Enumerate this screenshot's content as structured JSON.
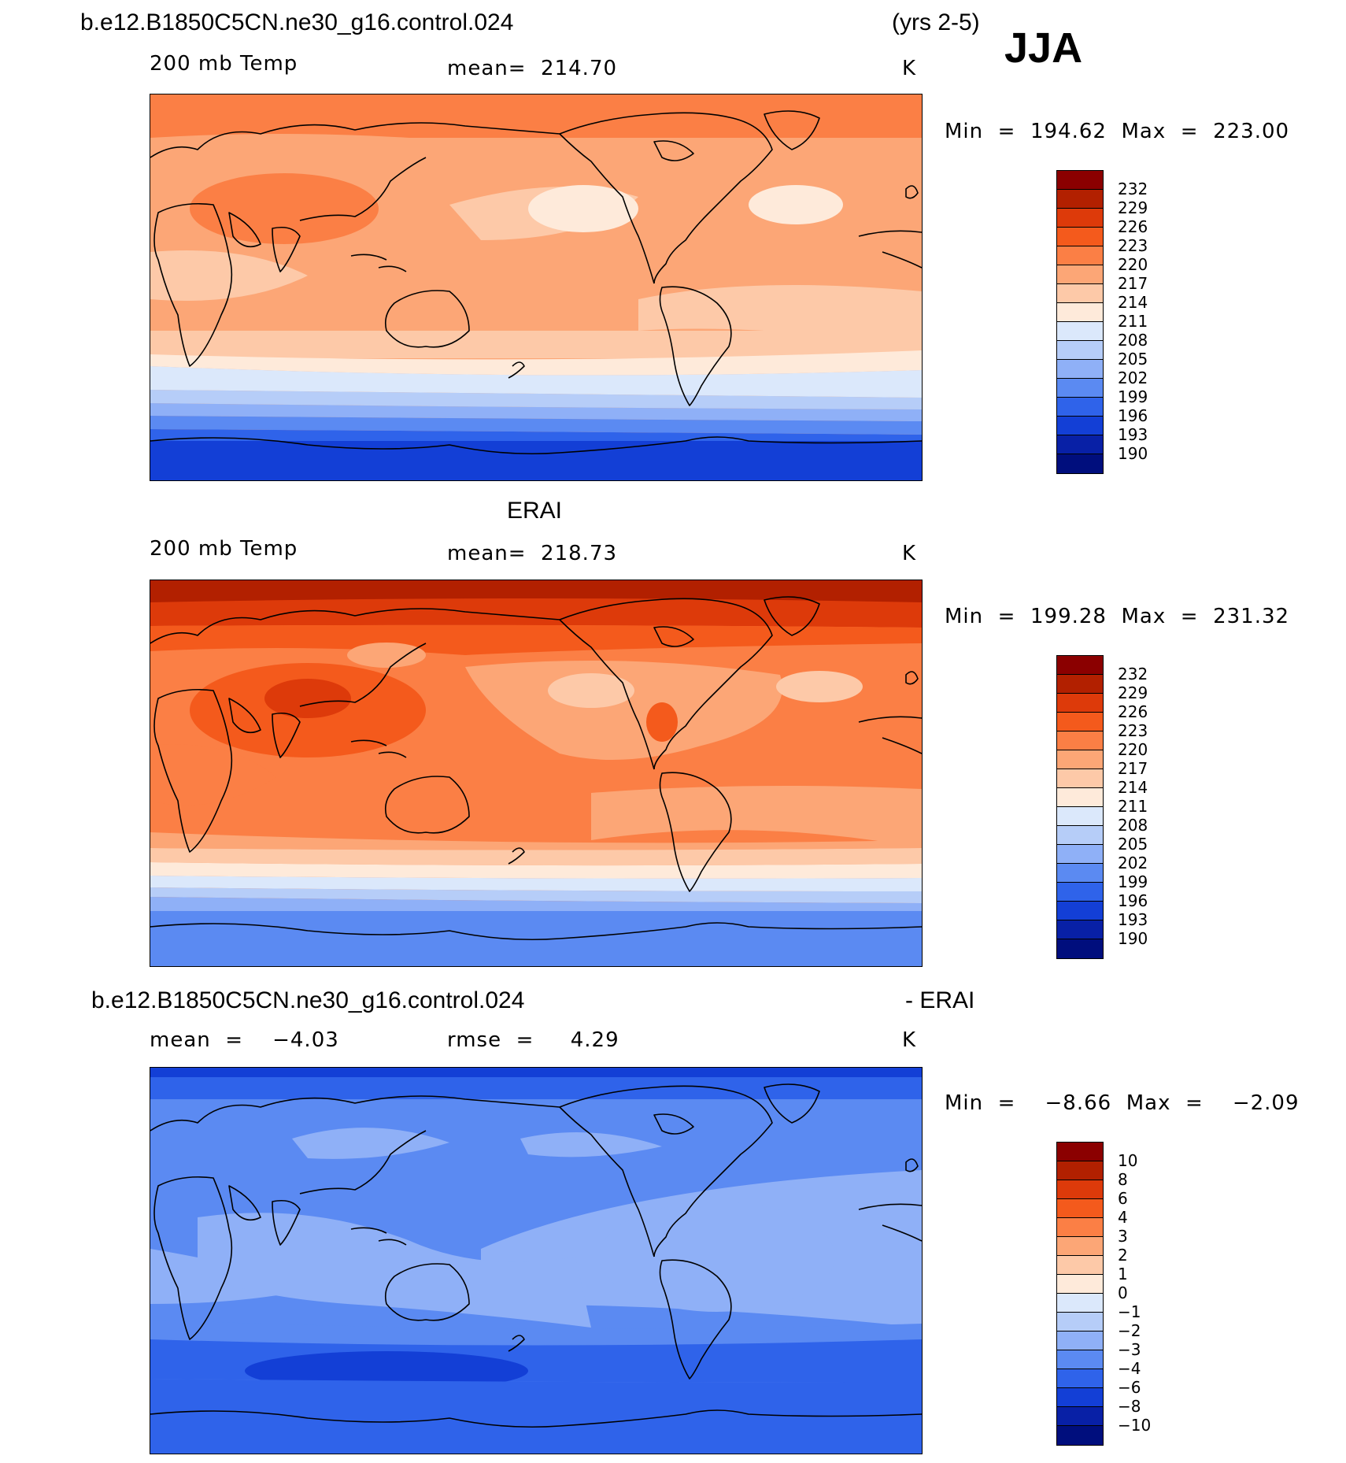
{
  "header": {
    "case_title": "b.e12.B1850C5CN.ne30_g16.control.024",
    "years": "(yrs 2-5)",
    "season": "JJA"
  },
  "panels": [
    {
      "variable": "200 mb Temp",
      "stat": "mean=  214.70",
      "units": "K",
      "minmax": "Min  =  194.62  Max  =  223.00",
      "levels": [
        "232",
        "229",
        "226",
        "223",
        "220",
        "217",
        "214",
        "211",
        "208",
        "205",
        "202",
        "199",
        "196",
        "193",
        "190"
      ]
    },
    {
      "title": "ERAI",
      "variable": "200 mb Temp",
      "stat": "mean=  218.73",
      "units": "K",
      "minmax": "Min  =  199.28  Max  =  231.32",
      "levels": [
        "232",
        "229",
        "226",
        "223",
        "220",
        "217",
        "214",
        "211",
        "208",
        "205",
        "202",
        "199",
        "196",
        "193",
        "190"
      ]
    },
    {
      "title_left": "b.e12.B1850C5CN.ne30_g16.control.024",
      "title_right": "- ERAI",
      "stat_mean": "mean  =    −4.03",
      "stat_rmse": "rmse  =     4.29",
      "units": "K",
      "minmax": "Min  =    −8.66  Max  =    −2.09",
      "levels": [
        "10",
        "8",
        "6",
        "4",
        "3",
        "2",
        "1",
        "0",
        "−1",
        "−2",
        "−3",
        "−4",
        "−6",
        "−8",
        "−10"
      ]
    }
  ],
  "colorbar_colors": [
    "#8b0000",
    "#b22000",
    "#dd3a0a",
    "#f45a1c",
    "#fb7f45",
    "#fca676",
    "#fdc9a8",
    "#feeada",
    "#dbe8fb",
    "#b6cdf8",
    "#8fb0f7",
    "#5b8af2",
    "#2f63ea",
    "#133fd6",
    "#0820a6",
    "#000e7d"
  ],
  "field_colors": {
    "T223_226": "#f45a1c",
    "T220_223": "#fb7f45",
    "T217_220": "#fca676",
    "T214_217": "#fdc9a8",
    "T211_214": "#feeada",
    "T208_211": "#dbe8fb",
    "T205_208": "#b6cdf8",
    "T202_205": "#8fb0f7",
    "T199_202": "#5b8af2",
    "T196_199": "#2f63ea",
    "T193_196": "#133fd6",
    "T229_232": "#b22000",
    "T226_229": "#dd3a0a",
    "D_m1_m2": "#b6cdf8",
    "D_m2_m3": "#8fb0f7",
    "D_m3_m4": "#5b8af2",
    "D_m4_m6": "#2f63ea",
    "D_m6_m8": "#133fd6"
  }
}
